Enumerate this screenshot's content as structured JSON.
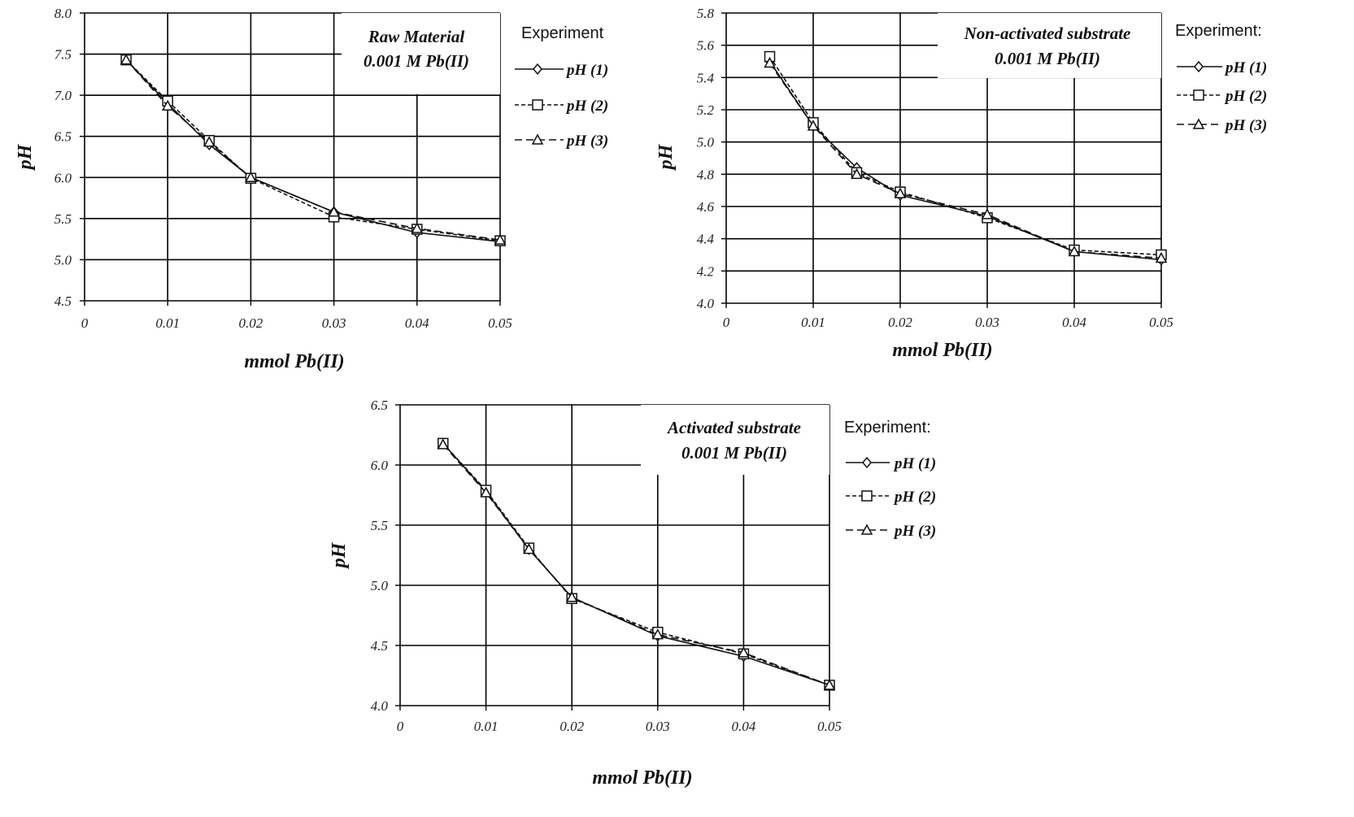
{
  "chart_data": [
    {
      "type": "line",
      "annotation": [
        "Raw Material",
        "0.001 M Pb(II)"
      ],
      "xlabel": "mmol Pb(II)",
      "ylabel": "pH",
      "xlim": [
        0,
        0.05
      ],
      "ylim": [
        4.5,
        8.0
      ],
      "xticks": [
        0,
        0.01,
        0.02,
        0.03,
        0.04,
        0.05
      ],
      "xtick_labels": [
        "0",
        "0.01",
        "0.02",
        "0.03",
        "0.04",
        "0.05"
      ],
      "yticks": [
        4.5,
        5.0,
        5.5,
        6.0,
        6.5,
        7.0,
        7.5,
        8.0
      ],
      "ytick_labels": [
        "4.5",
        "5.0",
        "5.5",
        "6.0",
        "6.5",
        "7.0",
        "7.5",
        "8.0"
      ],
      "grid": true,
      "legend_title": "Experiment",
      "legend_position": "right",
      "x": [
        0.005,
        0.01,
        0.015,
        0.02,
        0.03,
        0.04,
        0.05
      ],
      "series": [
        {
          "name": "pH (1)",
          "marker": "diamond",
          "dash": "solid",
          "values": [
            7.43,
            6.9,
            6.4,
            6.0,
            5.58,
            5.33,
            5.22
          ]
        },
        {
          "name": "pH (2)",
          "marker": "square",
          "dash": "short",
          "values": [
            7.43,
            6.93,
            6.45,
            5.99,
            5.52,
            5.37,
            5.23
          ]
        },
        {
          "name": "pH (3)",
          "marker": "triangle",
          "dash": "long",
          "values": [
            7.43,
            6.87,
            6.43,
            6.0,
            5.58,
            5.38,
            5.24
          ]
        }
      ]
    },
    {
      "type": "line",
      "annotation": [
        "Non-activated substrate",
        "0.001 M Pb(II)"
      ],
      "xlabel": "mmol Pb(II)",
      "ylabel": "pH",
      "xlim": [
        0,
        0.05
      ],
      "ylim": [
        4.0,
        5.8
      ],
      "xticks": [
        0,
        0.01,
        0.02,
        0.03,
        0.04,
        0.05
      ],
      "xtick_labels": [
        "0",
        "0.01",
        "0.02",
        "0.03",
        "0.04",
        "0.05"
      ],
      "yticks": [
        4.0,
        4.2,
        4.4,
        4.6,
        4.8,
        5.0,
        5.2,
        5.4,
        5.6,
        5.8
      ],
      "ytick_labels": [
        "4.0",
        "4.2",
        "4.4",
        "4.6",
        "4.8",
        "5.0",
        "5.2",
        "5.4",
        "5.6",
        "5.8"
      ],
      "grid": true,
      "legend_title": "Experiment:",
      "legend_position": "right",
      "x": [
        0.005,
        0.01,
        0.015,
        0.02,
        0.03,
        0.04,
        0.05
      ],
      "series": [
        {
          "name": "pH (1)",
          "marker": "diamond",
          "dash": "solid",
          "values": [
            5.5,
            5.1,
            4.84,
            4.67,
            4.54,
            4.32,
            4.27
          ]
        },
        {
          "name": "pH (2)",
          "marker": "square",
          "dash": "short",
          "values": [
            5.53,
            5.12,
            4.81,
            4.69,
            4.53,
            4.33,
            4.3
          ]
        },
        {
          "name": "pH (3)",
          "marker": "triangle",
          "dash": "long",
          "values": [
            5.49,
            5.1,
            4.8,
            4.68,
            4.55,
            4.32,
            4.28
          ]
        }
      ]
    },
    {
      "type": "line",
      "annotation": [
        "Activated substrate",
        "0.001 M Pb(II)"
      ],
      "xlabel": "mmol Pb(II)",
      "ylabel": "pH",
      "xlim": [
        0,
        0.05
      ],
      "ylim": [
        4.0,
        6.5
      ],
      "xticks": [
        0,
        0.01,
        0.02,
        0.03,
        0.04,
        0.05
      ],
      "xtick_labels": [
        "0",
        "0.01",
        "0.02",
        "0.03",
        "0.04",
        "0.05"
      ],
      "yticks": [
        4.0,
        4.5,
        5.0,
        5.5,
        6.0,
        6.5
      ],
      "ytick_labels": [
        "4.0",
        "4.5",
        "5.0",
        "5.5",
        "6.0",
        "6.5"
      ],
      "grid": true,
      "legend_title": "Experiment:",
      "legend_position": "right",
      "x": [
        0.005,
        0.01,
        0.015,
        0.02,
        0.03,
        0.04,
        0.05
      ],
      "series": [
        {
          "name": "pH (1)",
          "marker": "diamond",
          "dash": "solid",
          "values": [
            6.18,
            5.78,
            5.3,
            4.9,
            4.58,
            4.41,
            4.17
          ]
        },
        {
          "name": "pH (2)",
          "marker": "square",
          "dash": "short",
          "values": [
            6.18,
            5.79,
            5.31,
            4.89,
            4.61,
            4.43,
            4.17
          ]
        },
        {
          "name": "pH (3)",
          "marker": "triangle",
          "dash": "long",
          "values": [
            6.17,
            5.77,
            5.3,
            4.9,
            4.59,
            4.44,
            4.17
          ]
        }
      ]
    }
  ]
}
